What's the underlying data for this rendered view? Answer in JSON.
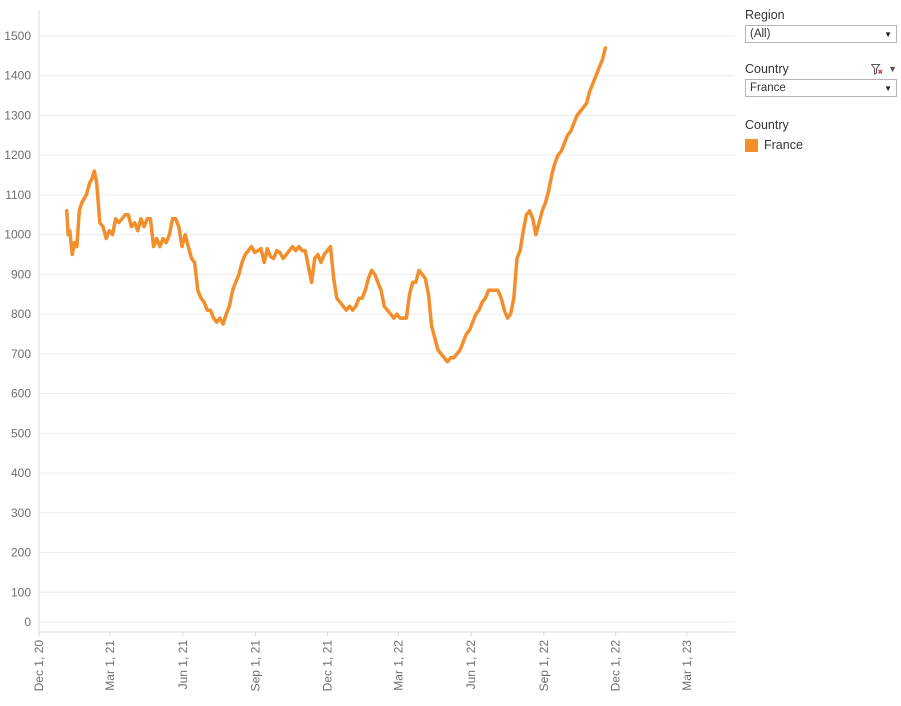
{
  "filters": {
    "region": {
      "title": "Region",
      "value": "(All)"
    },
    "country": {
      "title": "Country",
      "value": "France"
    }
  },
  "legend": {
    "title": "Country",
    "items": [
      {
        "label": "France",
        "color": "#f28e2b"
      }
    ]
  },
  "chart_data": {
    "type": "line",
    "title": "",
    "xlabel": "",
    "ylabel": "",
    "ylim": [
      0,
      1500
    ],
    "xlim": [
      "2020-12-01",
      "2023-05-01"
    ],
    "yticks": [
      "0",
      "100",
      "200",
      "300",
      "400",
      "500",
      "600",
      "700",
      "800",
      "900",
      "1000",
      "1100",
      "1200",
      "1300",
      "1400",
      "1500"
    ],
    "xticks": [
      {
        "date": "2020-12-01",
        "label": "Dec 1, 20"
      },
      {
        "date": "2021-03-01",
        "label": "Mar 1, 21"
      },
      {
        "date": "2021-06-01",
        "label": "Jun 1, 21"
      },
      {
        "date": "2021-09-01",
        "label": "Sep 1, 21"
      },
      {
        "date": "2021-12-01",
        "label": "Dec 1, 21"
      },
      {
        "date": "2022-03-01",
        "label": "Mar 1, 22"
      },
      {
        "date": "2022-06-01",
        "label": "Jun 1, 22"
      },
      {
        "date": "2022-09-01",
        "label": "Sep 1, 22"
      },
      {
        "date": "2022-12-01",
        "label": "Dec 1, 22"
      },
      {
        "date": "2023-03-01",
        "label": "Mar 1, 23"
      }
    ],
    "grid": true,
    "series": [
      {
        "name": "France",
        "color": "#f28e2b",
        "points": [
          [
            "2021-01-05",
            1060
          ],
          [
            "2021-01-07",
            1000
          ],
          [
            "2021-01-09",
            1010
          ],
          [
            "2021-01-12",
            950
          ],
          [
            "2021-01-15",
            980
          ],
          [
            "2021-01-18",
            970
          ],
          [
            "2021-01-21",
            1060
          ],
          [
            "2021-01-24",
            1080
          ],
          [
            "2021-01-27",
            1090
          ],
          [
            "2021-01-30",
            1100
          ],
          [
            "2021-02-03",
            1130
          ],
          [
            "2021-02-06",
            1140
          ],
          [
            "2021-02-09",
            1160
          ],
          [
            "2021-02-12",
            1130
          ],
          [
            "2021-02-16",
            1030
          ],
          [
            "2021-02-20",
            1020
          ],
          [
            "2021-02-24",
            990
          ],
          [
            "2021-02-28",
            1010
          ],
          [
            "2021-03-04",
            1000
          ],
          [
            "2021-03-08",
            1040
          ],
          [
            "2021-03-12",
            1030
          ],
          [
            "2021-03-16",
            1040
          ],
          [
            "2021-03-20",
            1050
          ],
          [
            "2021-03-24",
            1050
          ],
          [
            "2021-03-28",
            1020
          ],
          [
            "2021-04-01",
            1030
          ],
          [
            "2021-04-05",
            1010
          ],
          [
            "2021-04-09",
            1040
          ],
          [
            "2021-04-13",
            1020
          ],
          [
            "2021-04-17",
            1040
          ],
          [
            "2021-04-21",
            1040
          ],
          [
            "2021-04-25",
            970
          ],
          [
            "2021-04-29",
            990
          ],
          [
            "2021-05-03",
            970
          ],
          [
            "2021-05-07",
            990
          ],
          [
            "2021-05-11",
            980
          ],
          [
            "2021-05-15",
            1000
          ],
          [
            "2021-05-19",
            1040
          ],
          [
            "2021-05-23",
            1040
          ],
          [
            "2021-05-27",
            1020
          ],
          [
            "2021-05-31",
            970
          ],
          [
            "2021-06-04",
            1000
          ],
          [
            "2021-06-08",
            970
          ],
          [
            "2021-06-12",
            940
          ],
          [
            "2021-06-16",
            930
          ],
          [
            "2021-06-20",
            860
          ],
          [
            "2021-06-24",
            840
          ],
          [
            "2021-06-28",
            830
          ],
          [
            "2021-07-02",
            810
          ],
          [
            "2021-07-06",
            810
          ],
          [
            "2021-07-10",
            790
          ],
          [
            "2021-07-14",
            780
          ],
          [
            "2021-07-18",
            790
          ],
          [
            "2021-07-22",
            775
          ],
          [
            "2021-07-26",
            800
          ],
          [
            "2021-07-30",
            820
          ],
          [
            "2021-08-03",
            860
          ],
          [
            "2021-08-07",
            880
          ],
          [
            "2021-08-11",
            900
          ],
          [
            "2021-08-15",
            930
          ],
          [
            "2021-08-19",
            950
          ],
          [
            "2021-08-23",
            960
          ],
          [
            "2021-08-27",
            970
          ],
          [
            "2021-08-31",
            955
          ],
          [
            "2021-09-04",
            960
          ],
          [
            "2021-09-08",
            965
          ],
          [
            "2021-09-12",
            930
          ],
          [
            "2021-09-16",
            965
          ],
          [
            "2021-09-20",
            945
          ],
          [
            "2021-09-24",
            940
          ],
          [
            "2021-09-28",
            960
          ],
          [
            "2021-10-02",
            955
          ],
          [
            "2021-10-06",
            940
          ],
          [
            "2021-10-10",
            950
          ],
          [
            "2021-10-14",
            960
          ],
          [
            "2021-10-18",
            970
          ],
          [
            "2021-10-22",
            960
          ],
          [
            "2021-10-26",
            970
          ],
          [
            "2021-10-30",
            960
          ],
          [
            "2021-11-03",
            960
          ],
          [
            "2021-11-07",
            920
          ],
          [
            "2021-11-11",
            880
          ],
          [
            "2021-11-15",
            940
          ],
          [
            "2021-11-19",
            950
          ],
          [
            "2021-11-23",
            930
          ],
          [
            "2021-11-27",
            950
          ],
          [
            "2021-12-01",
            960
          ],
          [
            "2021-12-05",
            970
          ],
          [
            "2021-12-09",
            890
          ],
          [
            "2021-12-13",
            840
          ],
          [
            "2021-12-17",
            830
          ],
          [
            "2021-12-21",
            820
          ],
          [
            "2021-12-25",
            810
          ],
          [
            "2021-12-29",
            820
          ],
          [
            "2022-01-02",
            810
          ],
          [
            "2022-01-06",
            820
          ],
          [
            "2022-01-10",
            840
          ],
          [
            "2022-01-14",
            840
          ],
          [
            "2022-01-18",
            860
          ],
          [
            "2022-01-22",
            890
          ],
          [
            "2022-01-26",
            910
          ],
          [
            "2022-01-30",
            900
          ],
          [
            "2022-02-03",
            880
          ],
          [
            "2022-02-07",
            860
          ],
          [
            "2022-02-11",
            820
          ],
          [
            "2022-02-15",
            810
          ],
          [
            "2022-02-19",
            800
          ],
          [
            "2022-02-23",
            790
          ],
          [
            "2022-02-27",
            800
          ],
          [
            "2022-03-03",
            790
          ],
          [
            "2022-03-07",
            790
          ],
          [
            "2022-03-11",
            790
          ],
          [
            "2022-03-15",
            850
          ],
          [
            "2022-03-19",
            880
          ],
          [
            "2022-03-23",
            880
          ],
          [
            "2022-03-27",
            910
          ],
          [
            "2022-03-31",
            900
          ],
          [
            "2022-04-04",
            890
          ],
          [
            "2022-04-08",
            850
          ],
          [
            "2022-04-12",
            770
          ],
          [
            "2022-04-16",
            740
          ],
          [
            "2022-04-20",
            710
          ],
          [
            "2022-04-24",
            700
          ],
          [
            "2022-04-28",
            690
          ],
          [
            "2022-05-02",
            680
          ],
          [
            "2022-05-06",
            690
          ],
          [
            "2022-05-10",
            690
          ],
          [
            "2022-05-14",
            700
          ],
          [
            "2022-05-18",
            710
          ],
          [
            "2022-05-22",
            730
          ],
          [
            "2022-05-26",
            750
          ],
          [
            "2022-05-30",
            760
          ],
          [
            "2022-06-03",
            780
          ],
          [
            "2022-06-07",
            800
          ],
          [
            "2022-06-11",
            810
          ],
          [
            "2022-06-15",
            830
          ],
          [
            "2022-06-19",
            840
          ],
          [
            "2022-06-23",
            860
          ],
          [
            "2022-06-27",
            860
          ],
          [
            "2022-07-01",
            860
          ],
          [
            "2022-07-05",
            860
          ],
          [
            "2022-07-09",
            840
          ],
          [
            "2022-07-13",
            810
          ],
          [
            "2022-07-17",
            790
          ],
          [
            "2022-07-21",
            800
          ],
          [
            "2022-07-25",
            840
          ],
          [
            "2022-07-29",
            940
          ],
          [
            "2022-08-02",
            960
          ],
          [
            "2022-08-06",
            1010
          ],
          [
            "2022-08-10",
            1050
          ],
          [
            "2022-08-14",
            1060
          ],
          [
            "2022-08-18",
            1040
          ],
          [
            "2022-08-22",
            1000
          ],
          [
            "2022-08-26",
            1030
          ],
          [
            "2022-08-30",
            1060
          ],
          [
            "2022-09-03",
            1080
          ],
          [
            "2022-09-07",
            1110
          ],
          [
            "2022-09-11",
            1150
          ],
          [
            "2022-09-15",
            1180
          ],
          [
            "2022-09-19",
            1200
          ],
          [
            "2022-09-23",
            1210
          ],
          [
            "2022-09-27",
            1230
          ],
          [
            "2022-10-01",
            1250
          ],
          [
            "2022-10-05",
            1260
          ],
          [
            "2022-10-09",
            1280
          ],
          [
            "2022-10-13",
            1300
          ],
          [
            "2022-10-17",
            1310
          ],
          [
            "2022-10-21",
            1320
          ],
          [
            "2022-10-25",
            1330
          ],
          [
            "2022-10-29",
            1360
          ],
          [
            "2022-11-02",
            1380
          ],
          [
            "2022-11-06",
            1400
          ],
          [
            "2022-11-10",
            1420
          ],
          [
            "2022-11-14",
            1440
          ],
          [
            "2022-11-18",
            1470
          ]
        ]
      }
    ]
  }
}
